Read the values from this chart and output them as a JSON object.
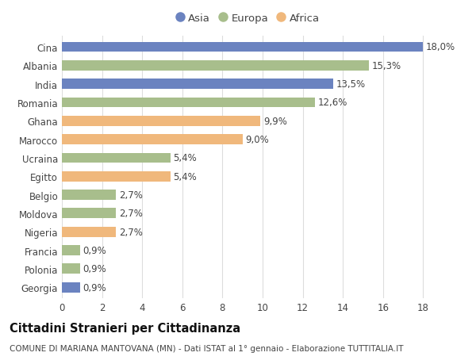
{
  "countries": [
    "Cina",
    "Albania",
    "India",
    "Romania",
    "Ghana",
    "Marocco",
    "Ucraina",
    "Egitto",
    "Belgio",
    "Moldova",
    "Nigeria",
    "Francia",
    "Polonia",
    "Georgia"
  ],
  "values": [
    18.0,
    15.3,
    13.5,
    12.6,
    9.9,
    9.0,
    5.4,
    5.4,
    2.7,
    2.7,
    2.7,
    0.9,
    0.9,
    0.9
  ],
  "continents": [
    "Asia",
    "Europa",
    "Asia",
    "Europa",
    "Africa",
    "Africa",
    "Europa",
    "Africa",
    "Europa",
    "Europa",
    "Africa",
    "Europa",
    "Europa",
    "Asia"
  ],
  "colors": {
    "Asia": "#6b83c0",
    "Europa": "#a8be8c",
    "Africa": "#f0b87c"
  },
  "legend_order": [
    "Asia",
    "Europa",
    "Africa"
  ],
  "title": "Cittadini Stranieri per Cittadinanza",
  "subtitle": "COMUNE DI MARIANA MANTOVANA (MN) - Dati ISTAT al 1° gennaio - Elaborazione TUTTITALIA.IT",
  "xlim": [
    0,
    18
  ],
  "xticks": [
    0,
    2,
    4,
    6,
    8,
    10,
    12,
    14,
    16,
    18
  ],
  "background_color": "#ffffff",
  "grid_color": "#dddddd",
  "bar_height": 0.55,
  "label_fontsize": 8.5,
  "title_fontsize": 10.5,
  "subtitle_fontsize": 7.5,
  "ytick_fontsize": 8.5,
  "xtick_fontsize": 8.5,
  "legend_fontsize": 9.5
}
